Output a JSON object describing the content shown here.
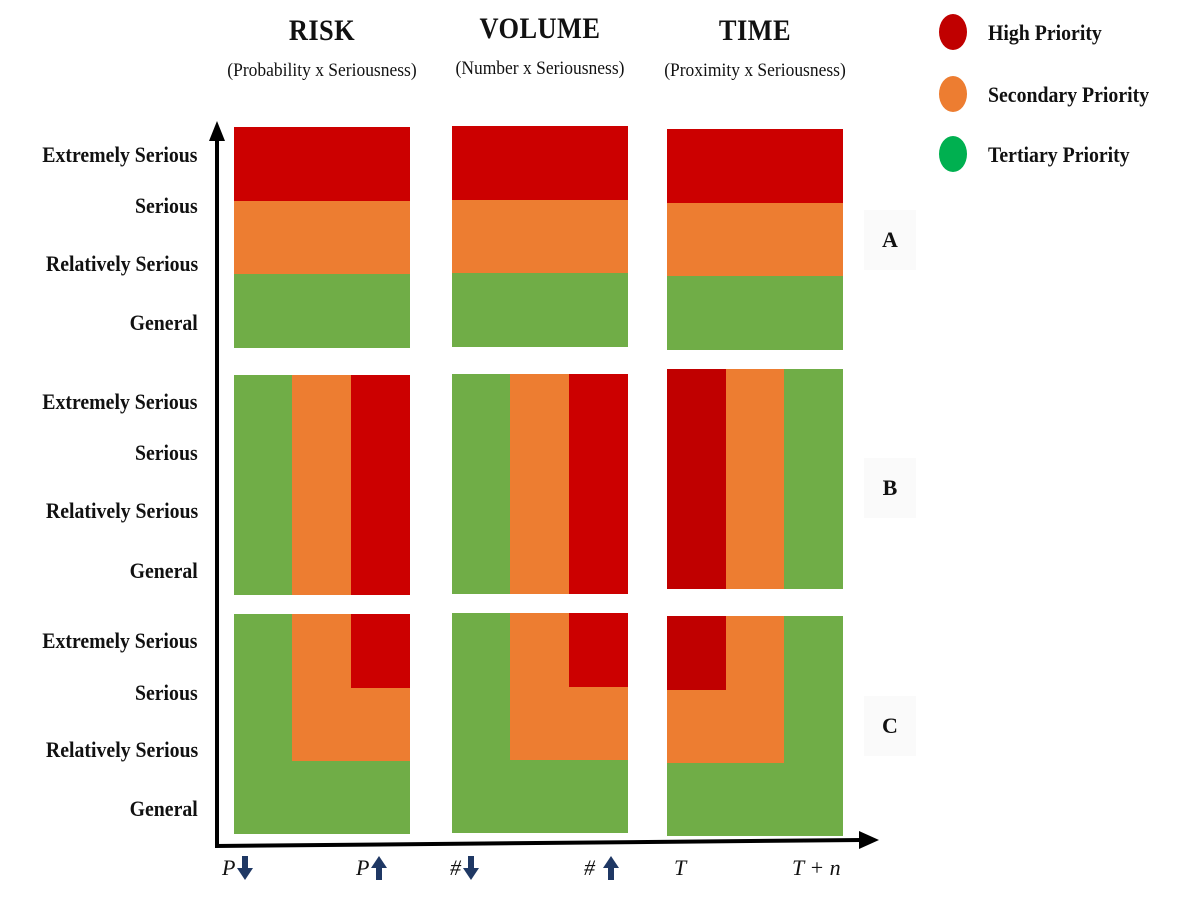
{
  "columns": [
    {
      "title": "RISK",
      "subtitle": "(Probability x Seriousness)"
    },
    {
      "title": "VOLUME",
      "subtitle": "(Number x Seriousness)"
    },
    {
      "title": "TIME",
      "subtitle": "(Proximity x Seriousness)"
    }
  ],
  "legend": [
    {
      "label": "High Priority",
      "color": "#c00000"
    },
    {
      "label": "Secondary Priority",
      "color": "#ed7d31"
    },
    {
      "label": "Tertiary Priority",
      "color": "#00b050"
    }
  ],
  "seriousness_levels": [
    "Extremely Serious",
    "Serious",
    "Relatively  Serious",
    "General"
  ],
  "row_tags": [
    "A",
    "B",
    "C"
  ],
  "x_axis_labels": [
    {
      "text": "P",
      "arrow": "down"
    },
    {
      "text": "P",
      "arrow": "up"
    },
    {
      "text": "#",
      "arrow": "down"
    },
    {
      "text": "# ",
      "arrow": "up"
    },
    {
      "text": "T",
      "arrow": ""
    },
    {
      "text": "T + n",
      "arrow": ""
    }
  ],
  "colors": {
    "high": "#cc0000",
    "secondary": "#ed7d31",
    "tertiary": "#70ad47",
    "axis": "#000000",
    "arrow_icon": "#1f3864"
  }
}
